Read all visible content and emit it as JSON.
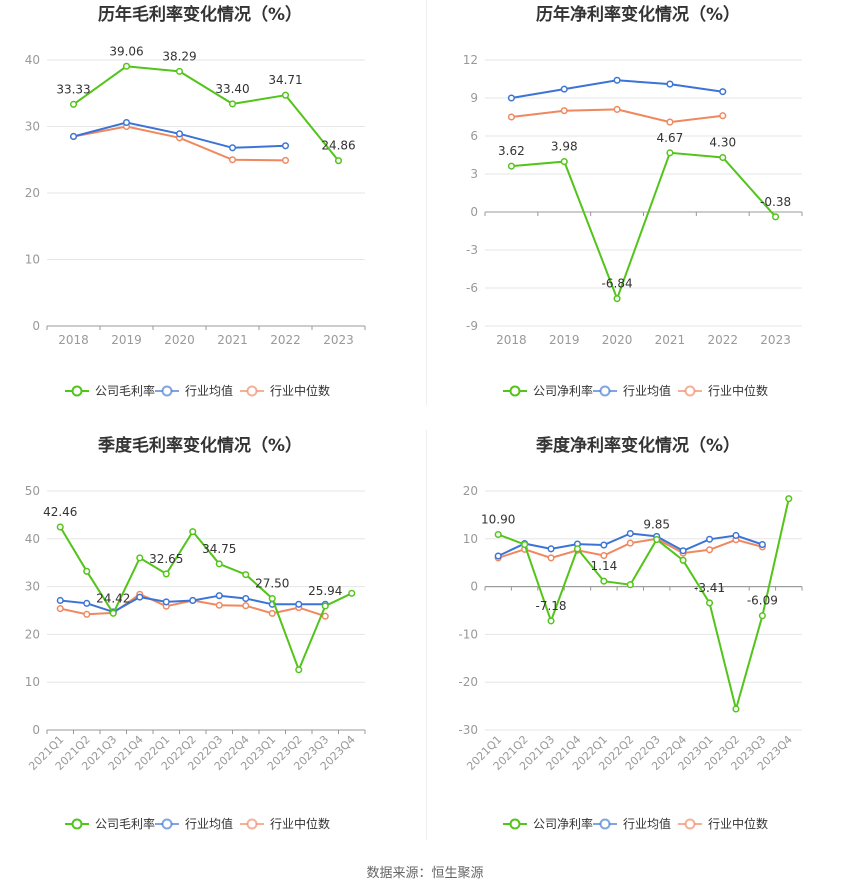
{
  "footer": {
    "source": "数据来源：恒生聚源"
  },
  "colors": {
    "company": "#52c41a",
    "industry_avg": "#3b74d6",
    "industry_median": "#f0875f",
    "grid": "#e6e6e6",
    "axis_text": "#999999",
    "title": "#333333",
    "label": "#333333"
  },
  "chart_data": [
    {
      "id": "annual-gross",
      "type": "line",
      "title": "历年毛利率变化情况（%）",
      "categories": [
        "2018",
        "2019",
        "2020",
        "2021",
        "2022",
        "2023"
      ],
      "ylim": [
        0,
        40
      ],
      "yticks": [
        0,
        10,
        20,
        30,
        40
      ],
      "grid": true,
      "legend_position": "bottom",
      "series": [
        {
          "name": "公司毛利率",
          "key": "company",
          "values": [
            33.33,
            39.06,
            38.29,
            33.4,
            34.71,
            24.86
          ],
          "labels": [
            "33.33",
            "39.06",
            "38.29",
            "33.40",
            "34.71",
            "24.86"
          ]
        },
        {
          "name": "行业均值",
          "key": "industry_avg",
          "values": [
            28.5,
            30.6,
            28.9,
            26.8,
            27.1,
            null
          ]
        },
        {
          "name": "行业中位数",
          "key": "industry_median",
          "values": [
            28.5,
            30.0,
            28.3,
            25.0,
            24.9,
            null
          ]
        }
      ]
    },
    {
      "id": "annual-net",
      "type": "line",
      "title": "历年净利率变化情况（%）",
      "categories": [
        "2018",
        "2019",
        "2020",
        "2021",
        "2022",
        "2023"
      ],
      "ylim": [
        -9,
        12
      ],
      "yticks": [
        -9,
        -6,
        -3,
        0,
        3,
        6,
        9,
        12
      ],
      "grid": true,
      "legend_position": "bottom",
      "series": [
        {
          "name": "公司净利率",
          "key": "company",
          "values": [
            3.62,
            3.98,
            -6.84,
            4.67,
            4.3,
            -0.38
          ],
          "labels": [
            "3.62",
            "3.98",
            "-6.84",
            "4.67",
            "4.30",
            "-0.38"
          ]
        },
        {
          "name": "行业均值",
          "key": "industry_avg",
          "values": [
            9.0,
            9.7,
            10.4,
            10.1,
            9.5,
            null
          ]
        },
        {
          "name": "行业中位数",
          "key": "industry_median",
          "values": [
            7.5,
            8.0,
            8.1,
            7.1,
            7.6,
            null
          ]
        }
      ]
    },
    {
      "id": "quarterly-gross",
      "type": "line",
      "title": "季度毛利率变化情况（%）",
      "categories": [
        "2021Q1",
        "2021Q2",
        "2021Q3",
        "2021Q4",
        "2022Q1",
        "2022Q2",
        "2022Q3",
        "2022Q4",
        "2023Q1",
        "2023Q2",
        "2023Q3",
        "2023Q4"
      ],
      "ylim": [
        0,
        50
      ],
      "yticks": [
        0,
        10,
        20,
        30,
        40,
        50
      ],
      "grid": true,
      "legend_position": "bottom",
      "series": [
        {
          "name": "公司毛利率",
          "key": "company",
          "values": [
            42.46,
            33.2,
            24.42,
            36.0,
            32.65,
            41.5,
            34.75,
            32.5,
            27.5,
            12.6,
            25.94,
            28.6
          ],
          "labels": [
            "42.46",
            "",
            "24.42",
            "",
            "32.65",
            "",
            "34.75",
            "",
            "27.50",
            "",
            "25.94",
            ""
          ]
        },
        {
          "name": "行业均值",
          "key": "industry_avg",
          "values": [
            27.1,
            26.5,
            24.7,
            27.8,
            26.8,
            27.1,
            28.1,
            27.5,
            26.3,
            26.3,
            26.3,
            null
          ]
        },
        {
          "name": "行业中位数",
          "key": "industry_median",
          "values": [
            25.4,
            24.2,
            24.5,
            28.4,
            25.9,
            27.1,
            26.1,
            26.0,
            24.4,
            25.6,
            23.8,
            null
          ]
        }
      ]
    },
    {
      "id": "quarterly-net",
      "type": "line",
      "title": "季度净利率变化情况（%）",
      "categories": [
        "2021Q1",
        "2021Q2",
        "2021Q3",
        "2021Q4",
        "2022Q1",
        "2022Q2",
        "2022Q3",
        "2022Q4",
        "2023Q1",
        "2023Q2",
        "2023Q3",
        "2023Q4"
      ],
      "ylim": [
        -30,
        20
      ],
      "yticks": [
        -30,
        -20,
        -10,
        0,
        10,
        20
      ],
      "grid": true,
      "legend_position": "bottom",
      "series": [
        {
          "name": "公司净利率",
          "key": "company",
          "values": [
            10.9,
            8.8,
            -7.18,
            7.9,
            1.14,
            0.4,
            9.85,
            5.5,
            -3.41,
            -25.6,
            -6.09,
            18.4
          ],
          "labels": [
            "10.90",
            "",
            "-7.18",
            "",
            "1.14",
            "",
            "9.85",
            "",
            "-3.41",
            "",
            "-6.09",
            ""
          ]
        },
        {
          "name": "行业均值",
          "key": "industry_avg",
          "values": [
            6.4,
            9.0,
            7.9,
            8.9,
            8.7,
            11.1,
            10.5,
            7.5,
            9.9,
            10.7,
            8.8,
            null
          ]
        },
        {
          "name": "行业中位数",
          "key": "industry_median",
          "values": [
            6.0,
            7.8,
            6.0,
            7.6,
            6.5,
            9.1,
            10.0,
            7.0,
            7.7,
            9.8,
            8.3,
            null
          ]
        }
      ]
    }
  ]
}
